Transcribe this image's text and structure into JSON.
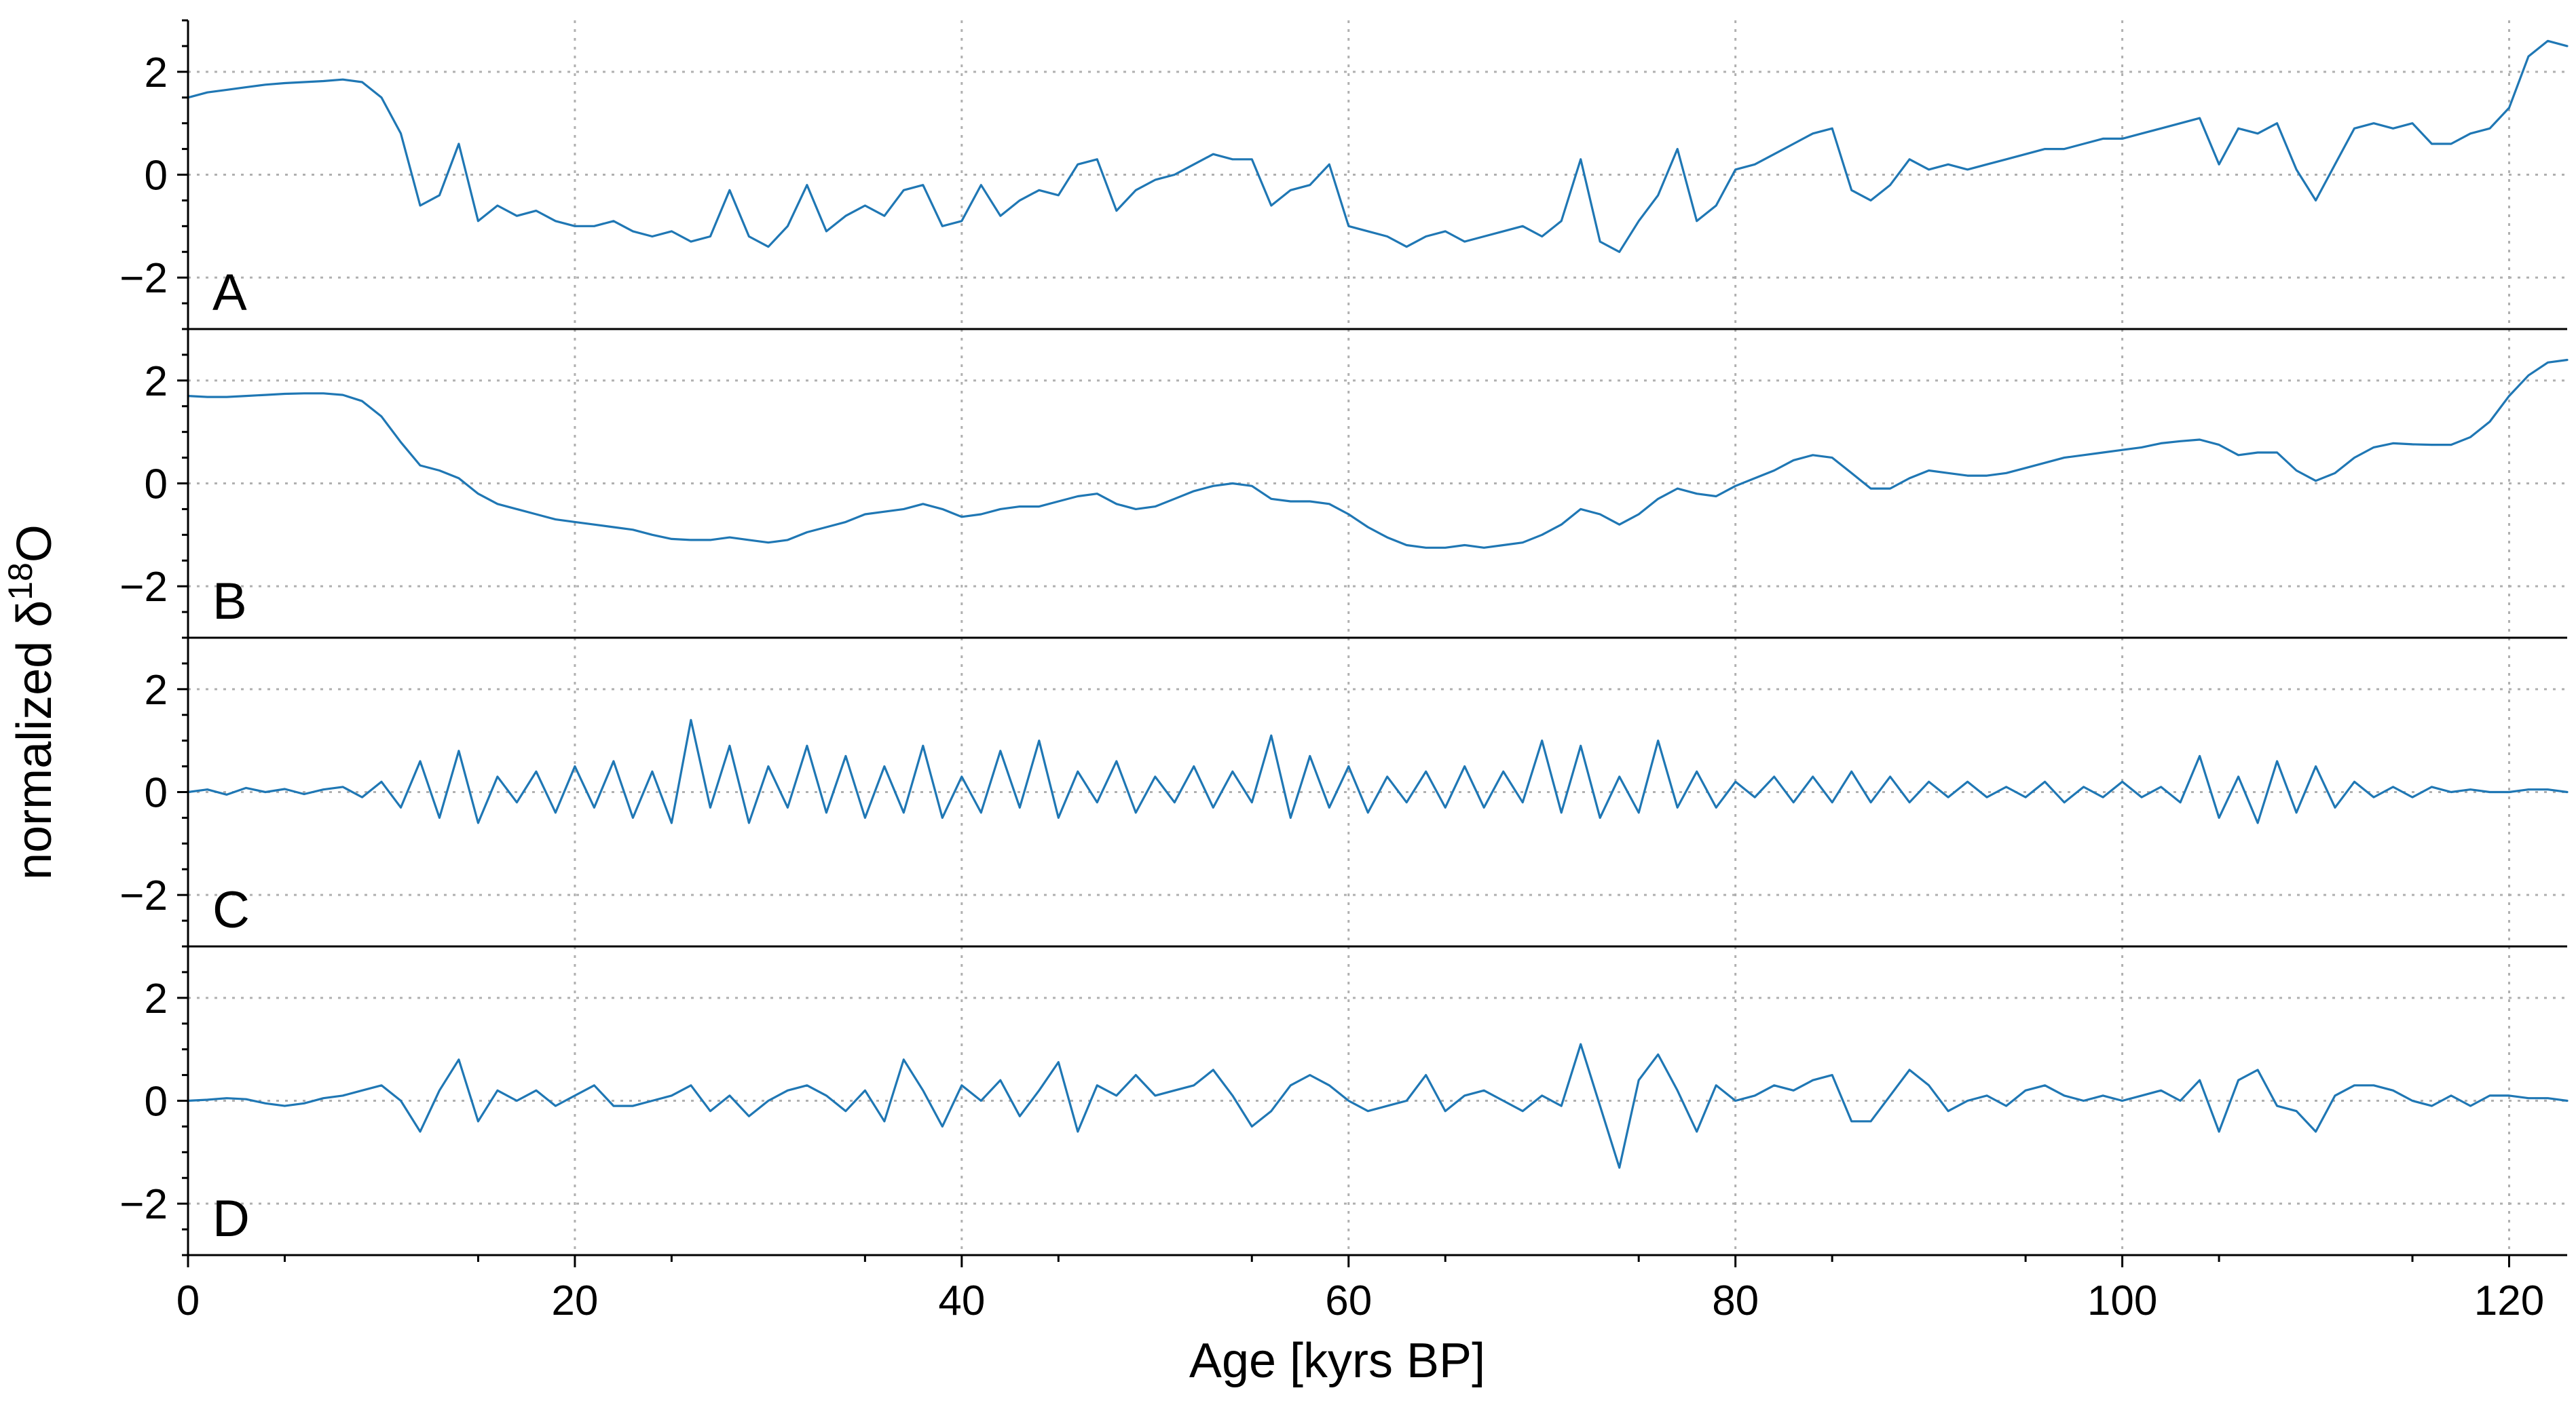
{
  "figure": {
    "xlabel": "Age [kyrs BP]",
    "ylabel_main": "normalized δ",
    "ylabel_sup": "18",
    "ylabel_tail": "O"
  },
  "chart_data": {
    "type": "line",
    "xlim": [
      0,
      123
    ],
    "ylim": [
      -3,
      3
    ],
    "x_ticks": [
      0,
      20,
      40,
      60,
      80,
      100,
      120
    ],
    "y_ticks": [
      2,
      0,
      -2
    ],
    "y_tick_labels": [
      "2",
      "0",
      "−2"
    ],
    "grid": true,
    "line_color": "#1f77b4",
    "panels": [
      {
        "label": "A",
        "x": [
          0,
          1,
          2,
          3,
          4,
          5,
          6,
          7,
          8,
          9,
          10,
          11,
          12,
          13,
          14,
          15,
          16,
          17,
          18,
          19,
          20,
          21,
          22,
          23,
          24,
          25,
          26,
          27,
          28,
          29,
          30,
          31,
          32,
          33,
          34,
          35,
          36,
          37,
          38,
          39,
          40,
          41,
          42,
          43,
          44,
          45,
          46,
          47,
          48,
          49,
          50,
          51,
          52,
          53,
          54,
          55,
          56,
          57,
          58,
          59,
          60,
          61,
          62,
          63,
          64,
          65,
          66,
          67,
          68,
          69,
          70,
          71,
          72,
          73,
          74,
          75,
          76,
          77,
          78,
          79,
          80,
          81,
          82,
          83,
          84,
          85,
          86,
          87,
          88,
          89,
          90,
          91,
          92,
          93,
          94,
          95,
          96,
          97,
          98,
          99,
          100,
          101,
          102,
          103,
          104,
          105,
          106,
          107,
          108,
          109,
          110,
          111,
          112,
          113,
          114,
          115,
          116,
          117,
          118,
          119,
          120,
          121,
          122,
          123
        ],
        "y": [
          1.5,
          1.6,
          1.65,
          1.7,
          1.75,
          1.78,
          1.8,
          1.82,
          1.85,
          1.8,
          1.5,
          0.8,
          -0.6,
          -0.4,
          0.6,
          -0.9,
          -0.6,
          -0.8,
          -0.7,
          -0.9,
          -1.0,
          -1.0,
          -0.9,
          -1.1,
          -1.2,
          -1.1,
          -1.3,
          -1.2,
          -0.3,
          -1.2,
          -1.4,
          -1.0,
          -0.2,
          -1.1,
          -0.8,
          -0.6,
          -0.8,
          -0.3,
          -0.2,
          -1.0,
          -0.9,
          -0.2,
          -0.8,
          -0.5,
          -0.3,
          -0.4,
          0.2,
          0.3,
          -0.7,
          -0.3,
          -0.1,
          0.0,
          0.2,
          0.4,
          0.3,
          0.3,
          -0.6,
          -0.3,
          -0.2,
          0.2,
          -1.0,
          -1.1,
          -1.2,
          -1.4,
          -1.2,
          -1.1,
          -1.3,
          -1.2,
          -1.1,
          -1.0,
          -1.2,
          -0.9,
          0.3,
          -1.3,
          -1.5,
          -0.9,
          -0.4,
          0.5,
          -0.9,
          -0.6,
          0.1,
          0.2,
          0.4,
          0.6,
          0.8,
          0.9,
          -0.3,
          -0.5,
          -0.2,
          0.3,
          0.1,
          0.2,
          0.1,
          0.2,
          0.3,
          0.4,
          0.5,
          0.5,
          0.6,
          0.7,
          0.7,
          0.8,
          0.9,
          1.0,
          1.1,
          0.2,
          0.9,
          0.8,
          1.0,
          0.1,
          -0.5,
          0.2,
          0.9,
          1.0,
          0.9,
          1.0,
          0.6,
          0.6,
          0.8,
          0.9,
          1.3,
          2.3,
          2.6,
          2.5
        ]
      },
      {
        "label": "B",
        "x": [
          0,
          1,
          2,
          3,
          4,
          5,
          6,
          7,
          8,
          9,
          10,
          11,
          12,
          13,
          14,
          15,
          16,
          17,
          18,
          19,
          20,
          21,
          22,
          23,
          24,
          25,
          26,
          27,
          28,
          29,
          30,
          31,
          32,
          33,
          34,
          35,
          36,
          37,
          38,
          39,
          40,
          41,
          42,
          43,
          44,
          45,
          46,
          47,
          48,
          49,
          50,
          51,
          52,
          53,
          54,
          55,
          56,
          57,
          58,
          59,
          60,
          61,
          62,
          63,
          64,
          65,
          66,
          67,
          68,
          69,
          70,
          71,
          72,
          73,
          74,
          75,
          76,
          77,
          78,
          79,
          80,
          81,
          82,
          83,
          84,
          85,
          86,
          87,
          88,
          89,
          90,
          91,
          92,
          93,
          94,
          95,
          96,
          97,
          98,
          99,
          100,
          101,
          102,
          103,
          104,
          105,
          106,
          107,
          108,
          109,
          110,
          111,
          112,
          113,
          114,
          115,
          116,
          117,
          118,
          119,
          120,
          121,
          122,
          123
        ],
        "y": [
          1.7,
          1.68,
          1.68,
          1.7,
          1.72,
          1.74,
          1.75,
          1.75,
          1.72,
          1.6,
          1.3,
          0.8,
          0.35,
          0.25,
          0.1,
          -0.2,
          -0.4,
          -0.5,
          -0.6,
          -0.7,
          -0.75,
          -0.8,
          -0.85,
          -0.9,
          -1.0,
          -1.08,
          -1.1,
          -1.1,
          -1.05,
          -1.1,
          -1.15,
          -1.1,
          -0.95,
          -0.85,
          -0.75,
          -0.6,
          -0.55,
          -0.5,
          -0.4,
          -0.5,
          -0.65,
          -0.6,
          -0.5,
          -0.45,
          -0.45,
          -0.35,
          -0.25,
          -0.2,
          -0.4,
          -0.5,
          -0.45,
          -0.3,
          -0.15,
          -0.05,
          0.0,
          -0.05,
          -0.3,
          -0.35,
          -0.35,
          -0.4,
          -0.6,
          -0.85,
          -1.05,
          -1.2,
          -1.25,
          -1.25,
          -1.2,
          -1.25,
          -1.2,
          -1.15,
          -1.0,
          -0.8,
          -0.5,
          -0.6,
          -0.8,
          -0.6,
          -0.3,
          -0.1,
          -0.2,
          -0.25,
          -0.05,
          0.1,
          0.25,
          0.45,
          0.55,
          0.5,
          0.2,
          -0.1,
          -0.1,
          0.1,
          0.25,
          0.2,
          0.15,
          0.15,
          0.2,
          0.3,
          0.4,
          0.5,
          0.55,
          0.6,
          0.65,
          0.7,
          0.78,
          0.82,
          0.85,
          0.75,
          0.55,
          0.6,
          0.6,
          0.25,
          0.05,
          0.2,
          0.5,
          0.7,
          0.78,
          0.76,
          0.75,
          0.75,
          0.9,
          1.2,
          1.7,
          2.1,
          2.35,
          2.4
        ]
      },
      {
        "label": "C",
        "x": [
          0,
          1,
          2,
          3,
          4,
          5,
          6,
          7,
          8,
          9,
          10,
          11,
          12,
          13,
          14,
          15,
          16,
          17,
          18,
          19,
          20,
          21,
          22,
          23,
          24,
          25,
          26,
          27,
          28,
          29,
          30,
          31,
          32,
          33,
          34,
          35,
          36,
          37,
          38,
          39,
          40,
          41,
          42,
          43,
          44,
          45,
          46,
          47,
          48,
          49,
          50,
          51,
          52,
          53,
          54,
          55,
          56,
          57,
          58,
          59,
          60,
          61,
          62,
          63,
          64,
          65,
          66,
          67,
          68,
          69,
          70,
          71,
          72,
          73,
          74,
          75,
          76,
          77,
          78,
          79,
          80,
          81,
          82,
          83,
          84,
          85,
          86,
          87,
          88,
          89,
          90,
          91,
          92,
          93,
          94,
          95,
          96,
          97,
          98,
          99,
          100,
          101,
          102,
          103,
          104,
          105,
          106,
          107,
          108,
          109,
          110,
          111,
          112,
          113,
          114,
          115,
          116,
          117,
          118,
          119,
          120,
          121,
          122,
          123
        ],
        "y": [
          0.0,
          0.05,
          -0.05,
          0.08,
          0.0,
          0.06,
          -0.04,
          0.05,
          0.1,
          -0.1,
          0.2,
          -0.3,
          0.6,
          -0.5,
          0.8,
          -0.6,
          0.3,
          -0.2,
          0.4,
          -0.4,
          0.5,
          -0.3,
          0.6,
          -0.5,
          0.4,
          -0.6,
          1.4,
          -0.3,
          0.9,
          -0.6,
          0.5,
          -0.3,
          0.9,
          -0.4,
          0.7,
          -0.5,
          0.5,
          -0.4,
          0.9,
          -0.5,
          0.3,
          -0.4,
          0.8,
          -0.3,
          1.0,
          -0.5,
          0.4,
          -0.2,
          0.6,
          -0.4,
          0.3,
          -0.2,
          0.5,
          -0.3,
          0.4,
          -0.2,
          1.1,
          -0.5,
          0.7,
          -0.3,
          0.5,
          -0.4,
          0.3,
          -0.2,
          0.4,
          -0.3,
          0.5,
          -0.3,
          0.4,
          -0.2,
          1.0,
          -0.4,
          0.9,
          -0.5,
          0.3,
          -0.4,
          1.0,
          -0.3,
          0.4,
          -0.3,
          0.2,
          -0.1,
          0.3,
          -0.2,
          0.3,
          -0.2,
          0.4,
          -0.2,
          0.3,
          -0.2,
          0.2,
          -0.1,
          0.2,
          -0.1,
          0.1,
          -0.1,
          0.2,
          -0.2,
          0.1,
          -0.1,
          0.2,
          -0.1,
          0.1,
          -0.2,
          0.7,
          -0.5,
          0.3,
          -0.6,
          0.6,
          -0.4,
          0.5,
          -0.3,
          0.2,
          -0.1,
          0.1,
          -0.1,
          0.1,
          0.0,
          0.05,
          0.0,
          0.0,
          0.05,
          0.05,
          0.0
        ]
      },
      {
        "label": "D",
        "x": [
          0,
          1,
          2,
          3,
          4,
          5,
          6,
          7,
          8,
          9,
          10,
          11,
          12,
          13,
          14,
          15,
          16,
          17,
          18,
          19,
          20,
          21,
          22,
          23,
          24,
          25,
          26,
          27,
          28,
          29,
          30,
          31,
          32,
          33,
          34,
          35,
          36,
          37,
          38,
          39,
          40,
          41,
          42,
          43,
          44,
          45,
          46,
          47,
          48,
          49,
          50,
          51,
          52,
          53,
          54,
          55,
          56,
          57,
          58,
          59,
          60,
          61,
          62,
          63,
          64,
          65,
          66,
          67,
          68,
          69,
          70,
          71,
          72,
          73,
          74,
          75,
          76,
          77,
          78,
          79,
          80,
          81,
          82,
          83,
          84,
          85,
          86,
          87,
          88,
          89,
          90,
          91,
          92,
          93,
          94,
          95,
          96,
          97,
          98,
          99,
          100,
          101,
          102,
          103,
          104,
          105,
          106,
          107,
          108,
          109,
          110,
          111,
          112,
          113,
          114,
          115,
          116,
          117,
          118,
          119,
          120,
          121,
          122,
          123
        ],
        "y": [
          0.0,
          0.02,
          0.05,
          0.03,
          -0.05,
          -0.1,
          -0.05,
          0.05,
          0.1,
          0.2,
          0.3,
          0.0,
          -0.6,
          0.2,
          0.8,
          -0.4,
          0.2,
          0.0,
          0.2,
          -0.1,
          0.1,
          0.3,
          -0.1,
          -0.1,
          0.0,
          0.1,
          0.3,
          -0.2,
          0.1,
          -0.3,
          0.0,
          0.2,
          0.3,
          0.1,
          -0.2,
          0.2,
          -0.4,
          0.8,
          0.2,
          -0.5,
          0.3,
          0.0,
          0.4,
          -0.3,
          0.2,
          0.75,
          -0.6,
          0.3,
          0.1,
          0.5,
          0.1,
          0.2,
          0.3,
          0.6,
          0.1,
          -0.5,
          -0.2,
          0.3,
          0.5,
          0.3,
          0.0,
          -0.2,
          -0.1,
          0.0,
          0.5,
          -0.2,
          0.1,
          0.2,
          0.0,
          -0.2,
          0.1,
          -0.1,
          1.1,
          -0.1,
          -1.3,
          0.4,
          0.9,
          0.2,
          -0.6,
          0.3,
          0.0,
          0.1,
          0.3,
          0.2,
          0.4,
          0.5,
          -0.4,
          -0.4,
          0.1,
          0.6,
          0.3,
          -0.2,
          0.0,
          0.1,
          -0.1,
          0.2,
          0.3,
          0.1,
          0.0,
          0.1,
          0.0,
          0.1,
          0.2,
          0.0,
          0.4,
          -0.6,
          0.4,
          0.6,
          -0.1,
          -0.2,
          -0.6,
          0.1,
          0.3,
          0.3,
          0.2,
          0.0,
          -0.1,
          0.1,
          -0.1,
          0.1,
          0.1,
          0.05,
          0.05,
          0.0
        ]
      }
    ]
  }
}
